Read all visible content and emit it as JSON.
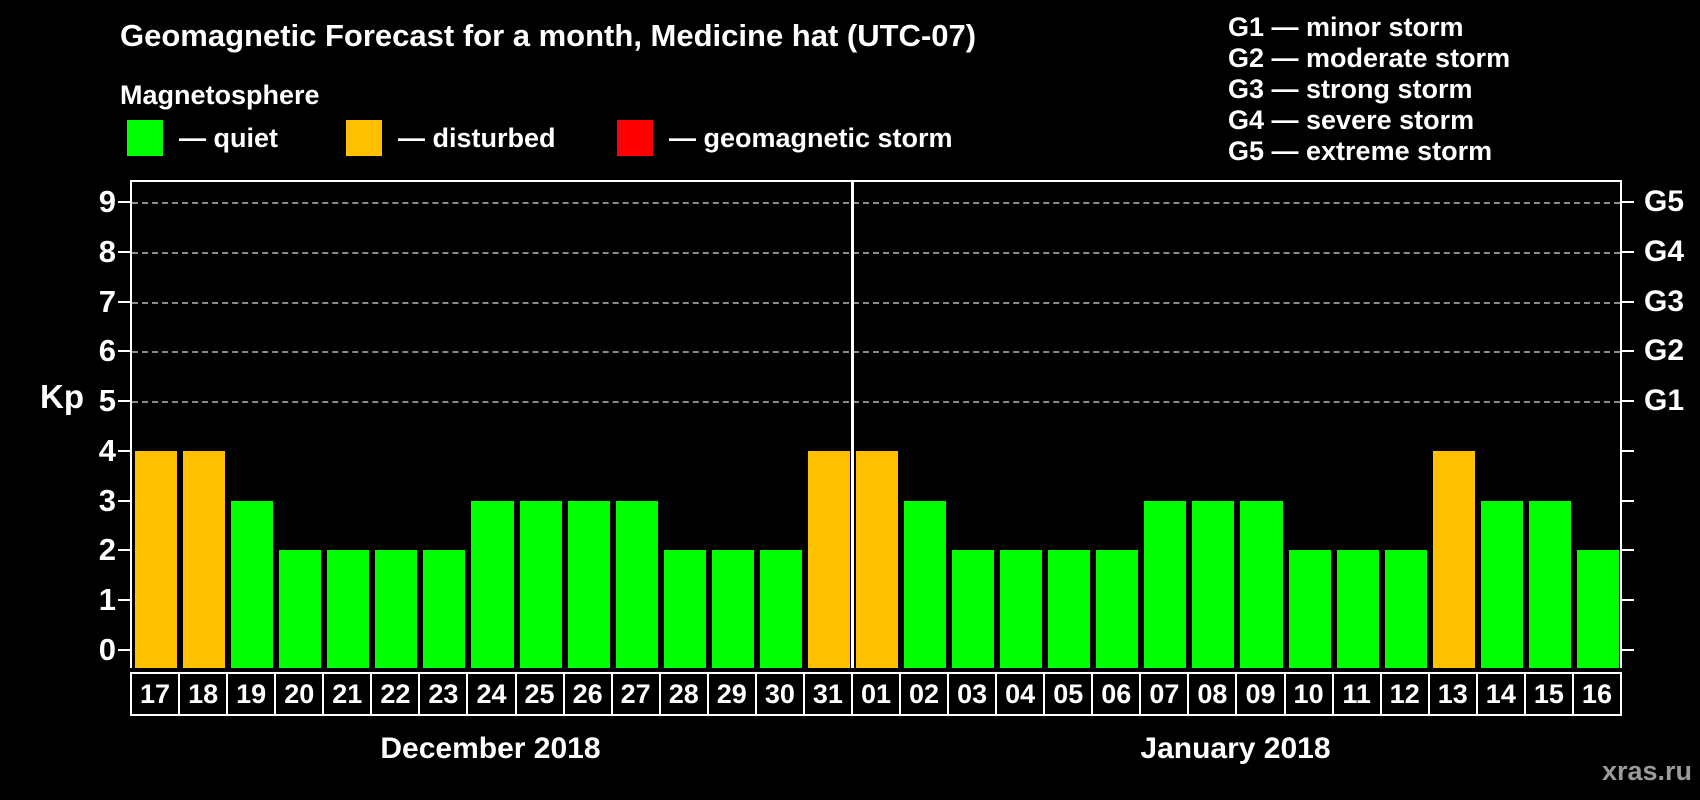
{
  "header": {
    "title": "Geomagnetic Forecast for a month, Medicine hat (UTC-07)",
    "subtitle": "Magnetosphere"
  },
  "legend": {
    "items": [
      {
        "name": "quiet",
        "label": "— quiet",
        "color": "#00ff00",
        "x": 127
      },
      {
        "name": "disturbed",
        "label": "— disturbed",
        "color": "#ffc000",
        "x": 346
      },
      {
        "name": "geomagnetic-storm",
        "label": "— geomagnetic storm",
        "color": "#ff0000",
        "x": 617
      }
    ]
  },
  "storm_scale_legend": [
    "G1 — minor storm",
    "G2 — moderate storm",
    "G3 — strong storm",
    "G4 — severe storm",
    "G5 — extreme storm"
  ],
  "axes": {
    "kp_label": "Kp",
    "left_ticks": [
      0,
      1,
      2,
      3,
      4,
      5,
      6,
      7,
      8,
      9
    ],
    "right_labels": [
      {
        "kp": 5,
        "label": "G1"
      },
      {
        "kp": 6,
        "label": "G2"
      },
      {
        "kp": 7,
        "label": "G3"
      },
      {
        "kp": 8,
        "label": "G4"
      },
      {
        "kp": 9,
        "label": "G5"
      }
    ],
    "gridline_kps": [
      5,
      6,
      7,
      8,
      9
    ]
  },
  "chart_data": {
    "type": "bar",
    "ylabel": "Kp",
    "ylim": [
      0,
      9
    ],
    "grid": "dashed horizontal at Kp 5-9 only",
    "state_colors": {
      "quiet": "#00ff00",
      "disturbed": "#ffc000",
      "storm": "#ff0000"
    },
    "groups": [
      {
        "month": "December 2018",
        "days": [
          "17",
          "18",
          "19",
          "20",
          "21",
          "22",
          "23",
          "24",
          "25",
          "26",
          "27",
          "28",
          "29",
          "30",
          "31"
        ],
        "values": [
          4,
          4,
          3,
          2,
          2,
          2,
          2,
          3,
          3,
          3,
          3,
          2,
          2,
          2,
          4
        ],
        "states": [
          "disturbed",
          "disturbed",
          "quiet",
          "quiet",
          "quiet",
          "quiet",
          "quiet",
          "quiet",
          "quiet",
          "quiet",
          "quiet",
          "quiet",
          "quiet",
          "quiet",
          "disturbed"
        ]
      },
      {
        "month": "January 2018",
        "days": [
          "01",
          "02",
          "03",
          "04",
          "05",
          "06",
          "07",
          "08",
          "09",
          "10",
          "11",
          "12",
          "13",
          "14",
          "15",
          "16"
        ],
        "values": [
          4,
          3,
          2,
          2,
          2,
          2,
          3,
          3,
          3,
          2,
          2,
          2,
          4,
          3,
          3,
          2
        ],
        "states": [
          "disturbed",
          "quiet",
          "quiet",
          "quiet",
          "quiet",
          "quiet",
          "quiet",
          "quiet",
          "quiet",
          "quiet",
          "quiet",
          "quiet",
          "disturbed",
          "quiet",
          "quiet",
          "quiet"
        ]
      }
    ]
  },
  "footer": {
    "watermark": "xras.ru"
  }
}
